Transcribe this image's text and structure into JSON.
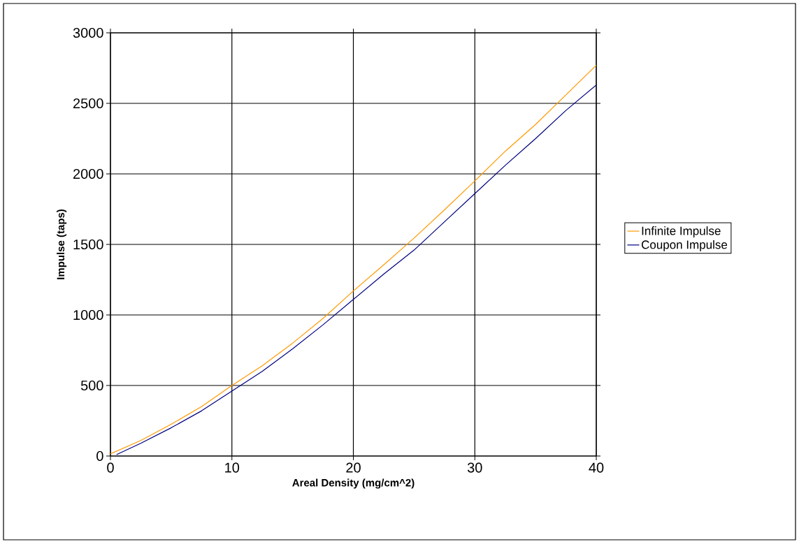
{
  "chart_data": {
    "type": "line",
    "xlabel": "Areal Density (mg/cm^2)",
    "ylabel": "Impulse (taps)",
    "xlim": [
      0,
      40
    ],
    "xticks": [
      0,
      10,
      20,
      30,
      40
    ],
    "ylim": [
      0,
      3000
    ],
    "yticks": [
      0,
      500,
      1000,
      1500,
      2000,
      2500,
      3000
    ],
    "grid": true,
    "legend": "right",
    "marker": "none",
    "line_style": "solid",
    "series": [
      {
        "name": "Infinite Impulse",
        "color": "#ff9900",
        "x": [
          0,
          2.5,
          5,
          7.5,
          10,
          12.5,
          15,
          17.5,
          20,
          22.5,
          25,
          27.5,
          30,
          32.5,
          35,
          37.5,
          40
        ],
        "values": [
          15,
          110,
          225,
          350,
          500,
          640,
          800,
          975,
          1170,
          1355,
          1545,
          1745,
          1950,
          2160,
          2350,
          2560,
          2770
        ]
      },
      {
        "name": "Coupon Impulse",
        "color": "#000080",
        "x": [
          0.5,
          2.5,
          5,
          7.5,
          10,
          12.5,
          15,
          17.5,
          20,
          22.5,
          25,
          27.5,
          30,
          32.5,
          35,
          37.5,
          40
        ],
        "values": [
          10,
          90,
          200,
          320,
          460,
          600,
          760,
          930,
          1110,
          1290,
          1460,
          1660,
          1860,
          2060,
          2250,
          2450,
          2630
        ]
      }
    ]
  }
}
